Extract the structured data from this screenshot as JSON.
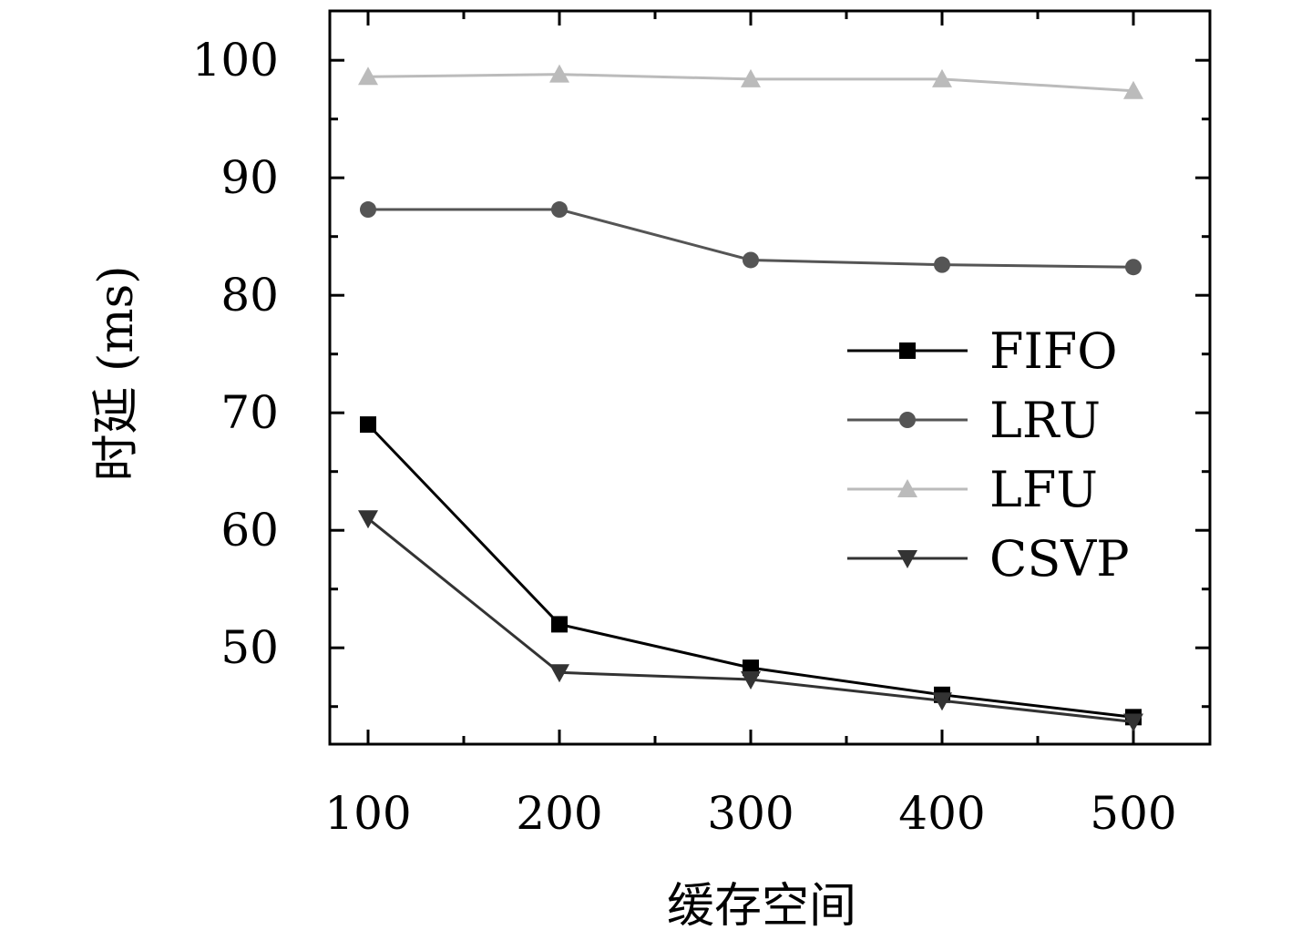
{
  "chart_data": {
    "type": "line",
    "title": "",
    "xlabel": "缓存空间",
    "ylabel": "时延 (ms)",
    "x": [
      100,
      200,
      300,
      400,
      500
    ],
    "x_ticks": [
      "100",
      "200",
      "300",
      "400",
      "500"
    ],
    "y_ticks": [
      "50",
      "60",
      "70",
      "80",
      "90",
      "100"
    ],
    "xlim": [
      80,
      540
    ],
    "ylim": [
      41.8,
      104.2
    ],
    "grid": false,
    "legend_position": "right",
    "series": [
      {
        "name": "FIFO",
        "values": [
          69.0,
          52.0,
          48.3,
          46.0,
          44.1
        ],
        "color": "#000000",
        "marker": "square"
      },
      {
        "name": "LRU",
        "values": [
          87.3,
          87.3,
          83.0,
          82.6,
          82.4
        ],
        "color": "#555555",
        "marker": "circle"
      },
      {
        "name": "LFU",
        "values": [
          98.6,
          98.8,
          98.4,
          98.4,
          97.4
        ],
        "color": "#bbbbbb",
        "marker": "triangle-up"
      },
      {
        "name": "CSVP",
        "values": [
          61.0,
          47.9,
          47.3,
          45.5,
          43.7
        ],
        "color": "#333333",
        "marker": "triangle-down"
      }
    ]
  }
}
